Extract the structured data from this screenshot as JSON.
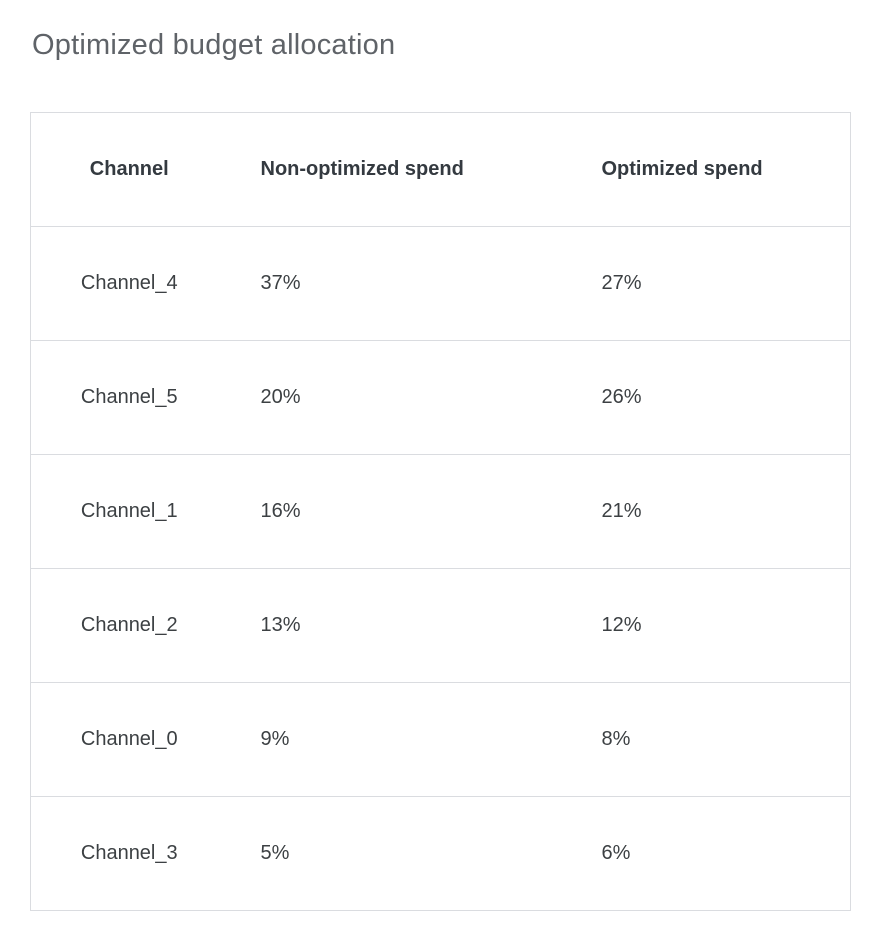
{
  "page_title": "Optimized budget allocation",
  "colors": {
    "background": "#ffffff",
    "title_text": "#5f6368",
    "header_text": "#343a40",
    "cell_text": "#3c4043",
    "table_border": "#dadce0"
  },
  "chart_data": {
    "type": "table",
    "title": "Optimized budget allocation",
    "columns": [
      "Channel",
      "Non-optimized spend",
      "Optimized spend"
    ],
    "rows": [
      [
        "Channel_4",
        "37%",
        "27%"
      ],
      [
        "Channel_5",
        "20%",
        "26%"
      ],
      [
        "Channel_1",
        "16%",
        "21%"
      ],
      [
        "Channel_2",
        "13%",
        "12%"
      ],
      [
        "Channel_0",
        "9%",
        "8%"
      ],
      [
        "Channel_3",
        "5%",
        "6%"
      ]
    ]
  }
}
